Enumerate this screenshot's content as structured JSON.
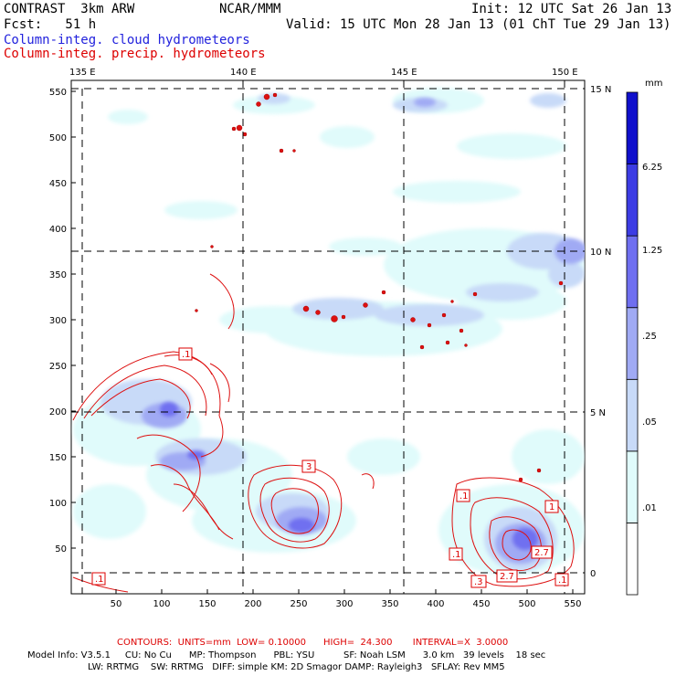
{
  "header": {
    "model": "CONTRAST  3km ARW",
    "org": "NCAR/MMM",
    "init": "Init: 12 UTC Sat 26 Jan 13",
    "fcst": "Fcst:   51 h",
    "valid": "Valid: 15 UTC Mon 28 Jan 13 (01 ChT Tue 29 Jan 13)",
    "field1": "Column-integ. cloud hydrometeors",
    "field2": "Column-integ. precip. hydrometeors"
  },
  "map": {
    "lon_labels": [
      "135 E",
      "140 E",
      "145 E",
      "150 E"
    ],
    "lat_labels": [
      "15 N",
      "10 N",
      "5 N",
      "0"
    ],
    "x_ticks": [
      "50",
      "100",
      "150",
      "200",
      "250",
      "300",
      "350",
      "400",
      "450",
      "500",
      "550"
    ],
    "y_ticks": [
      "550",
      "500",
      "450",
      "400",
      "350",
      "300",
      "250",
      "200",
      "150",
      "100",
      "50"
    ],
    "contour_labels": [
      ".1",
      ".1",
      "3",
      ".1",
      "1",
      ".1",
      "2.7",
      "2.7",
      ".3",
      ".1"
    ]
  },
  "legend": {
    "units": "mm",
    "levels": [
      "6.25",
      "1.25",
      ".25",
      ".05",
      ".01"
    ],
    "colors": [
      "#ffffff",
      "#e0fbfb",
      "#c8daf8",
      "#a0aaf4",
      "#6f6ff0",
      "#3c3ce4",
      "#1010cc"
    ]
  },
  "footer": {
    "contours": "CONTOURS:  UNITS=mm  LOW= 0.10000      HIGH=  24.300       INTERVAL=X  3.0000",
    "model_info_1": "Model Info: V3.5.1     CU: No Cu      MP: Thompson      PBL: YSU          SF: Noah LSM      3.0 km   39 levels    18 sec",
    "model_info_2": "LW: RRTMG    SW: RRTMG   DIFF: simple KM: 2D Smagor DAMP: Rayleigh3   SFLAY: Rev MM5"
  }
}
